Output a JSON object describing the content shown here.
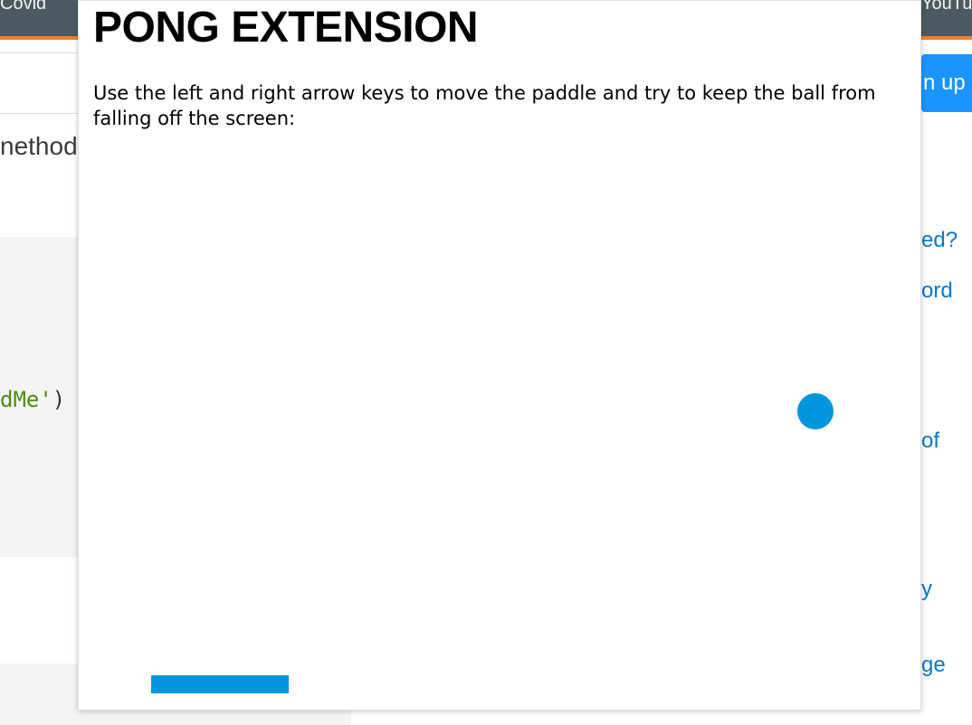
{
  "background_page": {
    "topbar": {
      "left_link": "Covid",
      "right_link": "YouTu"
    },
    "signup_button": "n up",
    "left_fragment": "nethod",
    "code_fragment": {
      "string": "dMe'",
      "punct": ")"
    },
    "right_links": [
      "ed?",
      "ord",
      "of",
      "y",
      "ge"
    ]
  },
  "popup": {
    "title": "PONG EXTENSION",
    "instructions": "Use the left and right arrow keys to move the paddle and try to keep the ball from falling off the screen:",
    "game": {
      "ball_color": "#0095dd",
      "paddle_color": "#0095dd"
    }
  }
}
